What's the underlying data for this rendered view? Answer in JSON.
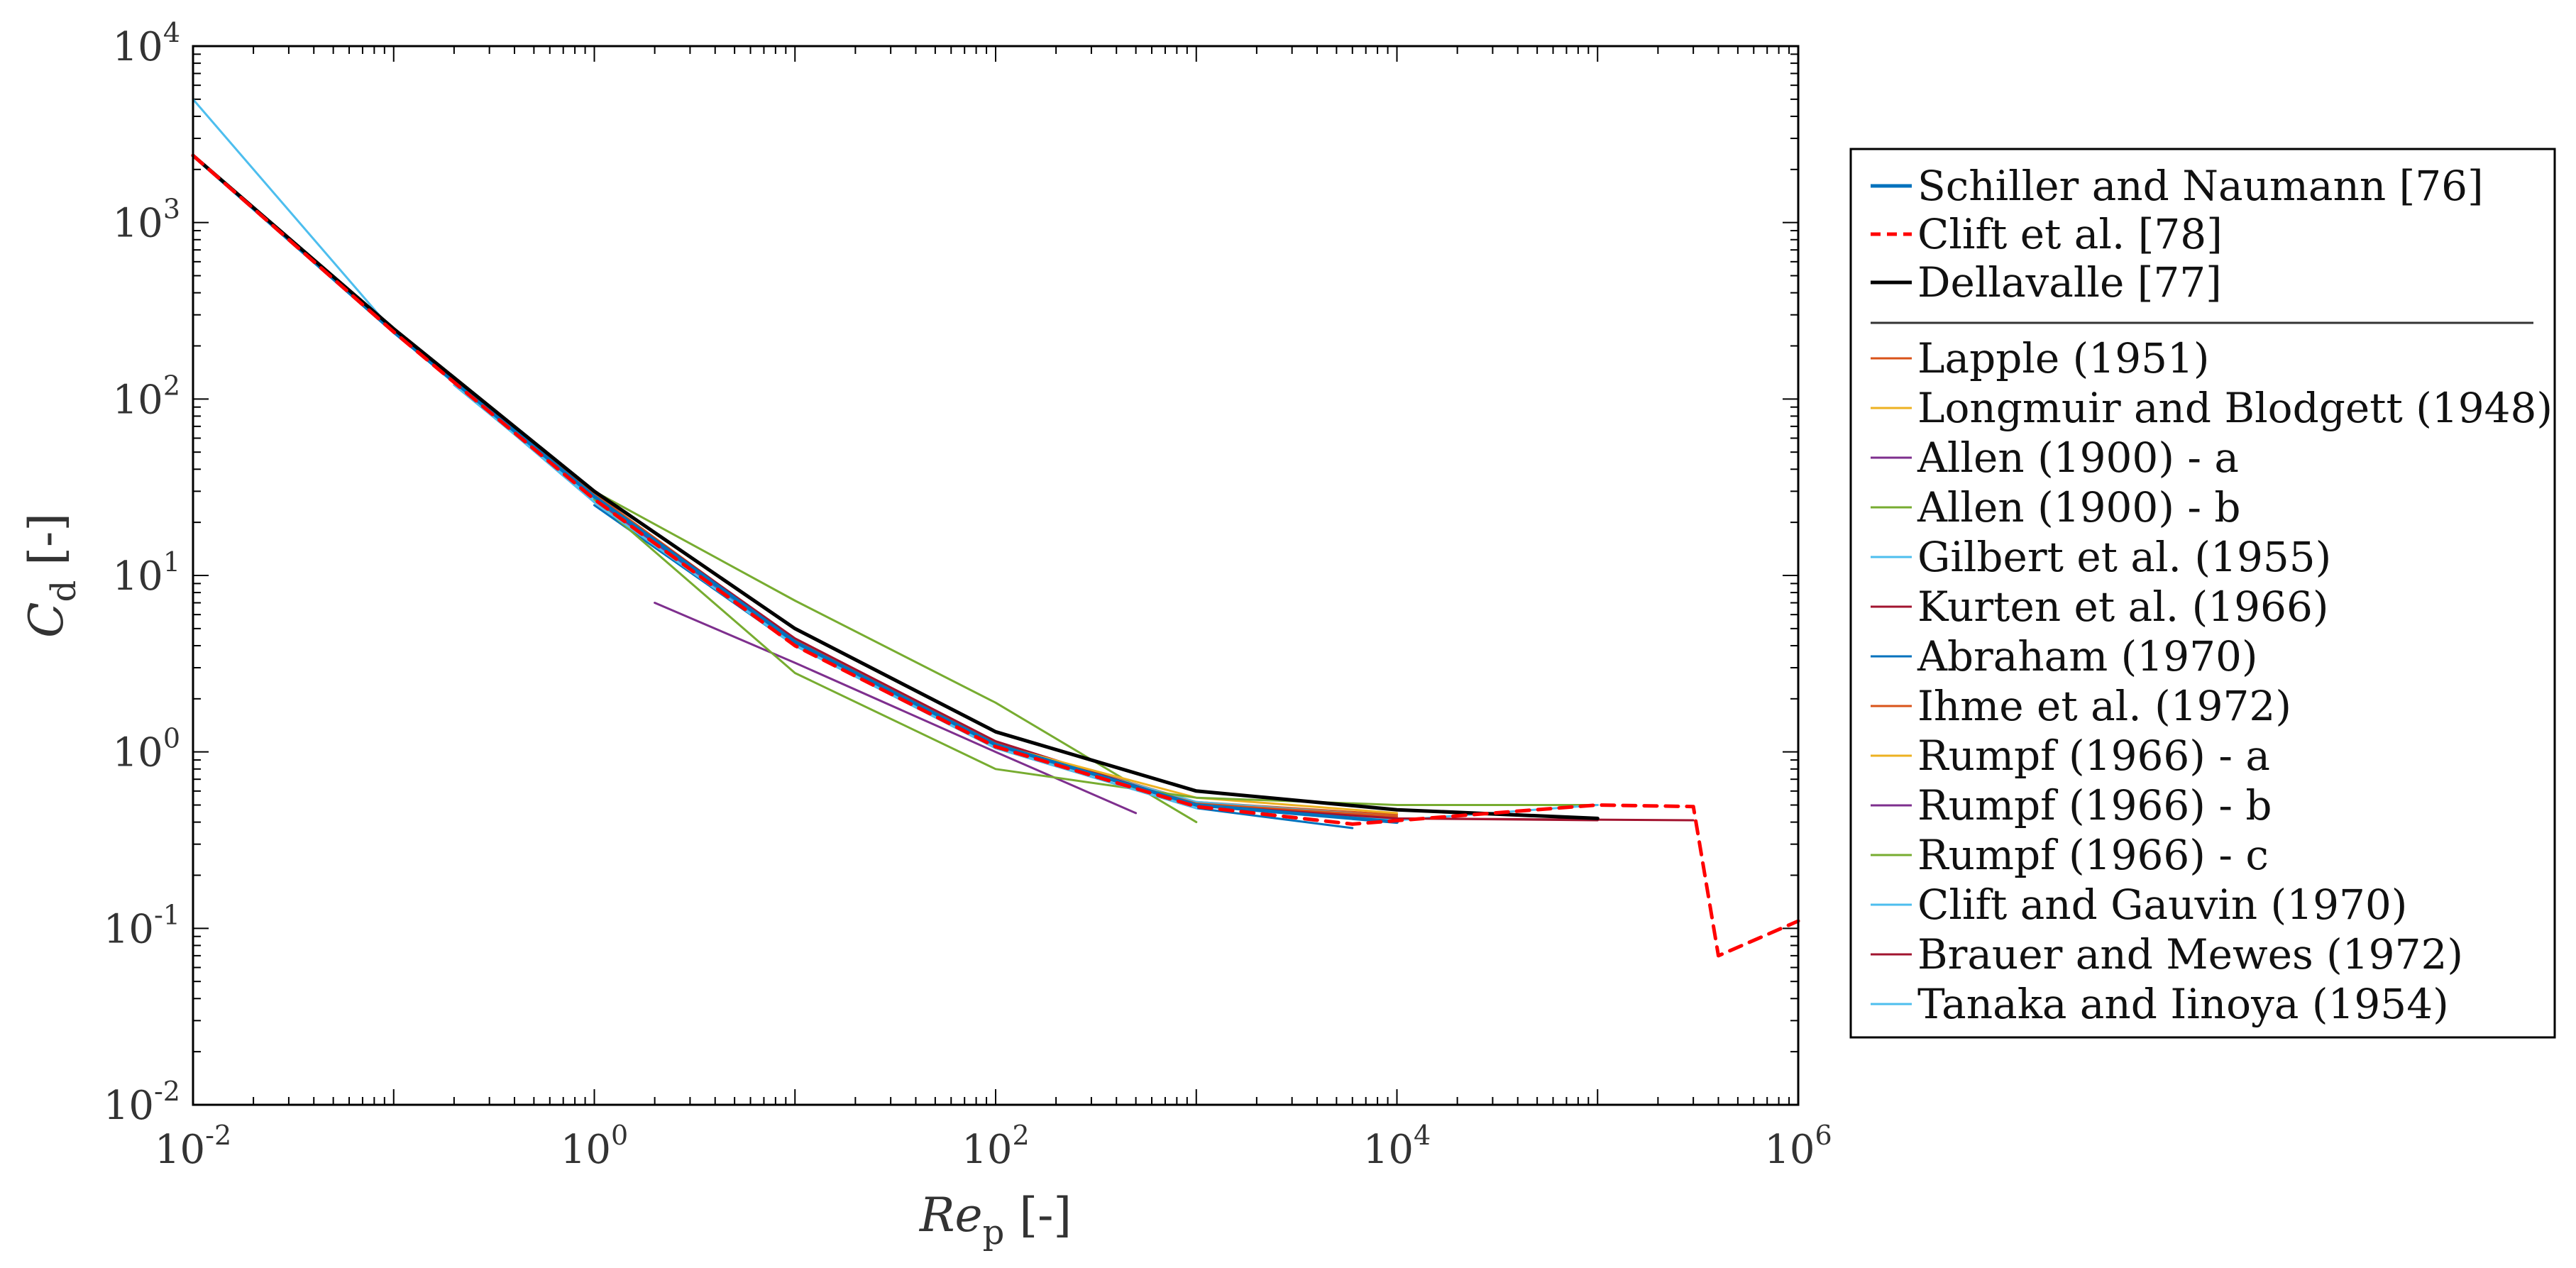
{
  "chart_data": {
    "type": "line",
    "title": "",
    "xlabel": {
      "main": "Re",
      "sub": "p",
      "unit": " [-]"
    },
    "ylabel": {
      "main": "C",
      "sub": "d",
      "unit": " [-]"
    },
    "xscale": "log",
    "yscale": "log",
    "xlim": [
      0.01,
      1000000
    ],
    "ylim": [
      0.01,
      10000
    ],
    "x_ticks": [
      {
        "value": 0.01,
        "base": "10",
        "exp": "-2"
      },
      {
        "value": 1,
        "base": "10",
        "exp": "0"
      },
      {
        "value": 100,
        "base": "10",
        "exp": "2"
      },
      {
        "value": 10000,
        "base": "10",
        "exp": "4"
      },
      {
        "value": 1000000,
        "base": "10",
        "exp": "6"
      }
    ],
    "y_ticks": [
      {
        "value": 0.01,
        "base": "10",
        "exp": "-2"
      },
      {
        "value": 0.1,
        "base": "10",
        "exp": "-1"
      },
      {
        "value": 1,
        "base": "10",
        "exp": "0"
      },
      {
        "value": 10,
        "base": "10",
        "exp": "1"
      },
      {
        "value": 100,
        "base": "10",
        "exp": "2"
      },
      {
        "value": 1000,
        "base": "10",
        "exp": "3"
      },
      {
        "value": 10000,
        "base": "10",
        "exp": "4"
      }
    ],
    "grid": false,
    "legend_position": "outside-right",
    "series": [
      {
        "name": "Schiller and Naumann [76]",
        "color": "#0072bd",
        "dash": "solid",
        "weight": "bold",
        "points": [
          [
            0.01,
            2400
          ],
          [
            0.1,
            240
          ],
          [
            1,
            28
          ],
          [
            10,
            4.2
          ],
          [
            100,
            1.1
          ],
          [
            1000,
            0.5
          ],
          [
            10000,
            0.4
          ]
        ]
      },
      {
        "name": "Clift et al. [78]",
        "color": "#ff0000",
        "dash": "dashed",
        "weight": "bold",
        "points": [
          [
            0.01,
            2400
          ],
          [
            0.1,
            240
          ],
          [
            1,
            27
          ],
          [
            10,
            4.0
          ],
          [
            100,
            1.07
          ],
          [
            1000,
            0.49
          ],
          [
            6000,
            0.39
          ],
          [
            30000,
            0.45
          ],
          [
            100000,
            0.5
          ],
          [
            300000,
            0.49
          ],
          [
            400000,
            0.07
          ],
          [
            1000000,
            0.11
          ]
        ]
      },
      {
        "name": "Dellavalle [77]",
        "color": "#000000",
        "dash": "solid",
        "weight": "bold",
        "points": [
          [
            0.01,
            2400
          ],
          [
            0.1,
            250
          ],
          [
            1,
            30
          ],
          [
            10,
            5.0
          ],
          [
            100,
            1.3
          ],
          [
            1000,
            0.6
          ],
          [
            10000,
            0.47
          ],
          [
            100000,
            0.42
          ]
        ]
      },
      {
        "name": "Lapple (1951)",
        "color": "#d95319",
        "dash": "solid",
        "weight": "thin",
        "points": [
          [
            0.1,
            245
          ],
          [
            1,
            29
          ],
          [
            10,
            4.3
          ],
          [
            100,
            1.12
          ],
          [
            1000,
            0.52
          ],
          [
            10000,
            0.44
          ]
        ]
      },
      {
        "name": "Longmuir and Blodgett (1948)",
        "color": "#edb120",
        "dash": "solid",
        "weight": "thin",
        "points": [
          [
            1,
            27
          ],
          [
            10,
            4.0
          ],
          [
            100,
            1.08
          ],
          [
            1000,
            0.5
          ]
        ]
      },
      {
        "name": "Allen (1900) - a",
        "color": "#7e2f8e",
        "dash": "solid",
        "weight": "thin",
        "points": [
          [
            2,
            7
          ],
          [
            10,
            3.2
          ],
          [
            100,
            1.0
          ],
          [
            500,
            0.45
          ]
        ]
      },
      {
        "name": "Allen (1900) - b",
        "color": "#77ac30",
        "dash": "solid",
        "weight": "thin",
        "points": [
          [
            1,
            30
          ],
          [
            10,
            7.2
          ],
          [
            100,
            1.9
          ],
          [
            1000,
            0.4
          ]
        ]
      },
      {
        "name": "Gilbert et al. (1955)",
        "color": "#4dbeee",
        "dash": "solid",
        "weight": "thin",
        "points": [
          [
            0.2,
            120
          ],
          [
            1,
            27
          ],
          [
            10,
            4.2
          ],
          [
            100,
            1.1
          ],
          [
            1000,
            0.52
          ],
          [
            10000,
            0.43
          ]
        ]
      },
      {
        "name": "Kurten et al. (1966)",
        "color": "#a2142f",
        "dash": "solid",
        "weight": "thin",
        "points": [
          [
            0.1,
            250
          ],
          [
            1,
            28
          ],
          [
            10,
            4.4
          ],
          [
            100,
            1.15
          ],
          [
            1000,
            0.5
          ],
          [
            10000,
            0.42
          ],
          [
            100000,
            0.41
          ]
        ]
      },
      {
        "name": "Abraham (1970)",
        "color": "#0072bd",
        "dash": "solid",
        "weight": "thin",
        "points": [
          [
            1,
            25
          ],
          [
            10,
            4.0
          ],
          [
            100,
            1.05
          ],
          [
            1000,
            0.48
          ],
          [
            6000,
            0.37
          ]
        ]
      },
      {
        "name": "Ihme et al. (1972)",
        "color": "#d95319",
        "dash": "solid",
        "weight": "thin",
        "points": [
          [
            1,
            26
          ],
          [
            10,
            4.1
          ],
          [
            100,
            1.08
          ],
          [
            1000,
            0.51
          ],
          [
            10000,
            0.43
          ]
        ]
      },
      {
        "name": "Rumpf (1966) - a",
        "color": "#edb120",
        "dash": "solid",
        "weight": "thin",
        "points": [
          [
            1,
            26
          ],
          [
            10,
            4.2
          ],
          [
            100,
            1.1
          ],
          [
            1000,
            0.55
          ],
          [
            10000,
            0.45
          ]
        ]
      },
      {
        "name": "Rumpf (1966) - b",
        "color": "#7e2f8e",
        "dash": "solid",
        "weight": "thin",
        "points": [
          [
            1,
            27
          ],
          [
            10,
            4.1
          ],
          [
            100,
            1.08
          ],
          [
            1000,
            0.5
          ]
        ]
      },
      {
        "name": "Rumpf (1966) - c",
        "color": "#77ac30",
        "dash": "solid",
        "weight": "thin",
        "points": [
          [
            1,
            27
          ],
          [
            10,
            2.8
          ],
          [
            100,
            0.8
          ],
          [
            1000,
            0.55
          ],
          [
            10000,
            0.5
          ],
          [
            100000,
            0.5
          ]
        ]
      },
      {
        "name": "Clift and Gauvin (1970)",
        "color": "#4dbeee",
        "dash": "solid",
        "weight": "thin",
        "points": [
          [
            0.01,
            2400
          ],
          [
            0.1,
            240
          ],
          [
            1,
            28
          ],
          [
            10,
            4.1
          ],
          [
            100,
            1.08
          ],
          [
            1000,
            0.5
          ],
          [
            10000,
            0.41
          ],
          [
            100000,
            0.5
          ]
        ]
      },
      {
        "name": "Brauer and Mewes (1972)",
        "color": "#a2142f",
        "dash": "solid",
        "weight": "thin",
        "points": [
          [
            0.1,
            245
          ],
          [
            1,
            28
          ],
          [
            10,
            4.2
          ],
          [
            100,
            1.1
          ],
          [
            1000,
            0.5
          ],
          [
            10000,
            0.42
          ],
          [
            300000,
            0.41
          ]
        ]
      },
      {
        "name": "Tanaka and Iinoya (1954)",
        "color": "#4dbeee",
        "dash": "solid",
        "weight": "thin",
        "points": [
          [
            0.01,
            5000
          ],
          [
            0.1,
            240
          ],
          [
            1,
            26
          ],
          [
            10,
            4.0
          ],
          [
            100,
            1.05
          ],
          [
            1000,
            0.48
          ]
        ]
      }
    ]
  }
}
